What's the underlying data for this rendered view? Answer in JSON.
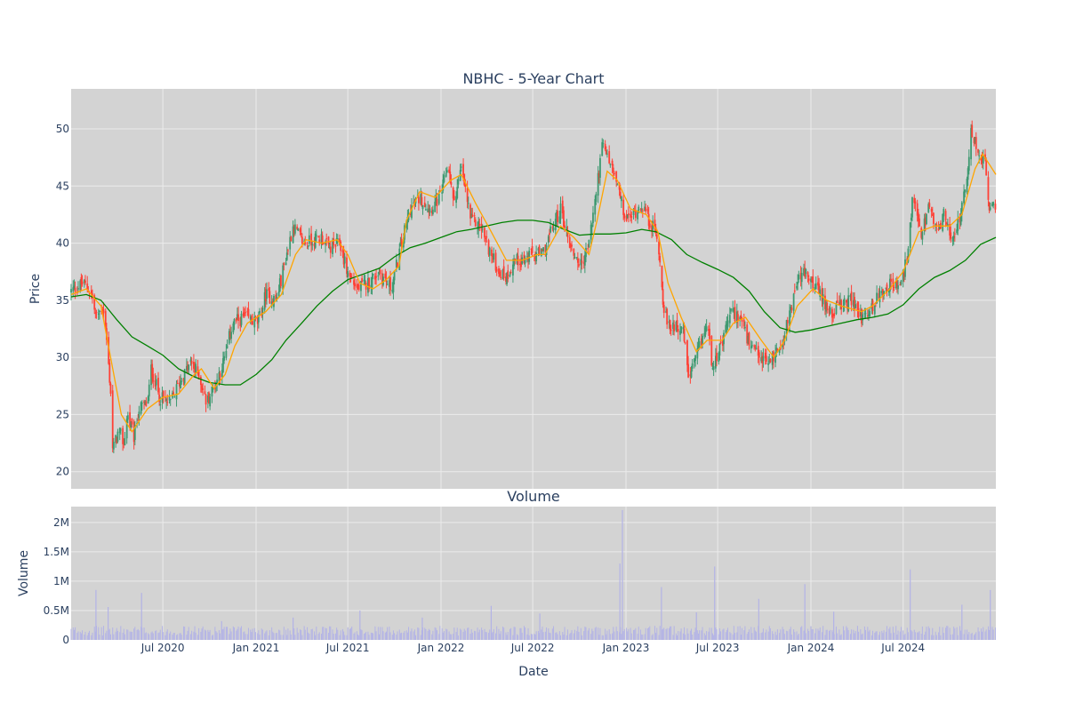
{
  "chart_data": {
    "type": "candlestick",
    "title": "NBHC - 5-Year Chart",
    "subplot_title": "Volume",
    "xlabel": "Date",
    "price_ylabel": "Price",
    "volume_ylabel": "Volume",
    "x_range": [
      "2020-01-02",
      "2024-12-31"
    ],
    "price_ylim": [
      18.5,
      53.5
    ],
    "volume_ylim": [
      0,
      2270000
    ],
    "x_ticks": [
      {
        "date": "2020-07-01",
        "label": "Jul 2020"
      },
      {
        "date": "2021-01-01",
        "label": "Jan 2021"
      },
      {
        "date": "2021-07-01",
        "label": "Jul 2021"
      },
      {
        "date": "2022-01-01",
        "label": "Jan 2022"
      },
      {
        "date": "2022-07-01",
        "label": "Jul 2022"
      },
      {
        "date": "2023-01-01",
        "label": "Jan 2023"
      },
      {
        "date": "2023-07-01",
        "label": "Jul 2023"
      },
      {
        "date": "2024-01-01",
        "label": "Jan 2024"
      },
      {
        "date": "2024-07-01",
        "label": "Jul 2024"
      }
    ],
    "price_ticks": [
      20,
      25,
      30,
      35,
      40,
      45,
      50
    ],
    "volume_ticks": [
      {
        "value": 0,
        "label": "0"
      },
      {
        "value": 500000,
        "label": "0.5M"
      },
      {
        "value": 1000000,
        "label": "1M"
      },
      {
        "value": 1500000,
        "label": "1.5M"
      },
      {
        "value": 2000000,
        "label": "2M"
      }
    ],
    "close_path": [
      [
        "2020-01-02",
        35.8
      ],
      [
        "2020-01-25",
        36.5
      ],
      [
        "2020-02-10",
        35.8
      ],
      [
        "2020-02-20",
        33.5
      ],
      [
        "2020-03-05",
        34.5
      ],
      [
        "2020-03-12",
        31.5
      ],
      [
        "2020-03-20",
        27.0
      ],
      [
        "2020-03-24",
        22.0
      ],
      [
        "2020-04-05",
        23.5
      ],
      [
        "2020-04-15",
        22.5
      ],
      [
        "2020-04-22",
        25.0
      ],
      [
        "2020-05-05",
        23.0
      ],
      [
        "2020-05-15",
        25.5
      ],
      [
        "2020-06-01",
        26.0
      ],
      [
        "2020-06-08",
        29.0
      ],
      [
        "2020-06-25",
        26.5
      ],
      [
        "2020-07-15",
        26.0
      ],
      [
        "2020-08-05",
        28.0
      ],
      [
        "2020-08-25",
        29.5
      ],
      [
        "2020-09-10",
        28.5
      ],
      [
        "2020-09-25",
        26.0
      ],
      [
        "2020-10-15",
        28.0
      ],
      [
        "2020-11-01",
        30.0
      ],
      [
        "2020-11-15",
        33.0
      ],
      [
        "2020-12-10",
        33.5
      ],
      [
        "2021-01-05",
        33.0
      ],
      [
        "2021-01-20",
        35.5
      ],
      [
        "2021-02-10",
        35.0
      ],
      [
        "2021-02-25",
        38.0
      ],
      [
        "2021-03-15",
        41.5
      ],
      [
        "2021-04-05",
        40.0
      ],
      [
        "2021-05-10",
        40.5
      ],
      [
        "2021-05-25",
        39.5
      ],
      [
        "2021-06-15",
        40.0
      ],
      [
        "2021-06-30",
        37.5
      ],
      [
        "2021-07-20",
        36.0
      ],
      [
        "2021-08-10",
        36.5
      ],
      [
        "2021-09-01",
        37.5
      ],
      [
        "2021-09-25",
        36.0
      ],
      [
        "2021-10-15",
        40.0
      ],
      [
        "2021-11-01",
        43.0
      ],
      [
        "2021-11-20",
        44.0
      ],
      [
        "2021-12-10",
        43.0
      ],
      [
        "2021-12-31",
        44.0
      ],
      [
        "2022-01-15",
        47.0
      ],
      [
        "2022-01-25",
        43.5
      ],
      [
        "2022-02-10",
        46.5
      ],
      [
        "2022-03-01",
        42.0
      ],
      [
        "2022-03-20",
        41.5
      ],
      [
        "2022-04-10",
        39.0
      ],
      [
        "2022-04-25",
        37.5
      ],
      [
        "2022-05-10",
        37.0
      ],
      [
        "2022-05-25",
        38.5
      ],
      [
        "2022-06-15",
        38.5
      ],
      [
        "2022-06-30",
        39.0
      ],
      [
        "2022-07-20",
        39.0
      ],
      [
        "2022-08-10",
        41.5
      ],
      [
        "2022-08-25",
        43.0
      ],
      [
        "2022-09-15",
        39.5
      ],
      [
        "2022-10-05",
        38.0
      ],
      [
        "2022-10-20",
        40.0
      ],
      [
        "2022-11-05",
        45.0
      ],
      [
        "2022-11-15",
        48.5
      ],
      [
        "2022-12-01",
        47.0
      ],
      [
        "2022-12-15",
        45.0
      ],
      [
        "2022-12-31",
        42.0
      ],
      [
        "2023-01-15",
        42.5
      ],
      [
        "2023-02-01",
        43.5
      ],
      [
        "2023-02-15",
        42.0
      ],
      [
        "2023-03-05",
        40.5
      ],
      [
        "2023-03-15",
        35.0
      ],
      [
        "2023-03-25",
        32.5
      ],
      [
        "2023-04-10",
        33.0
      ],
      [
        "2023-04-25",
        32.0
      ],
      [
        "2023-05-05",
        28.0
      ],
      [
        "2023-05-20",
        30.0
      ],
      [
        "2023-06-10",
        33.0
      ],
      [
        "2023-06-20",
        29.5
      ],
      [
        "2023-07-10",
        31.0
      ],
      [
        "2023-07-25",
        34.0
      ],
      [
        "2023-08-15",
        33.5
      ],
      [
        "2023-09-01",
        31.0
      ],
      [
        "2023-09-20",
        30.0
      ],
      [
        "2023-10-10",
        29.5
      ],
      [
        "2023-10-25",
        30.5
      ],
      [
        "2023-11-10",
        32.0
      ],
      [
        "2023-12-01",
        36.0
      ],
      [
        "2023-12-15",
        37.5
      ],
      [
        "2024-01-05",
        36.5
      ],
      [
        "2024-01-25",
        35.0
      ],
      [
        "2024-02-10",
        34.0
      ],
      [
        "2024-03-01",
        34.5
      ],
      [
        "2024-03-20",
        35.0
      ],
      [
        "2024-04-10",
        33.5
      ],
      [
        "2024-04-25",
        34.0
      ],
      [
        "2024-05-15",
        35.5
      ],
      [
        "2024-06-05",
        36.5
      ],
      [
        "2024-06-25",
        36.0
      ],
      [
        "2024-07-10",
        39.0
      ],
      [
        "2024-07-20",
        44.0
      ],
      [
        "2024-08-05",
        40.5
      ],
      [
        "2024-08-20",
        43.0
      ],
      [
        "2024-09-05",
        41.0
      ],
      [
        "2024-09-20",
        42.5
      ],
      [
        "2024-10-05",
        40.5
      ],
      [
        "2024-10-20",
        42.0
      ],
      [
        "2024-11-05",
        45.5
      ],
      [
        "2024-11-12",
        50.0
      ],
      [
        "2024-11-25",
        48.0
      ],
      [
        "2024-12-10",
        47.0
      ],
      [
        "2024-12-18",
        43.0
      ],
      [
        "2024-12-31",
        43.0
      ]
    ],
    "ma_short_path": [
      [
        "2020-01-02",
        35.5
      ],
      [
        "2020-02-01",
        36.0
      ],
      [
        "2020-03-01",
        34.5
      ],
      [
        "2020-03-20",
        30.0
      ],
      [
        "2020-04-10",
        25.0
      ],
      [
        "2020-05-01",
        23.5
      ],
      [
        "2020-06-01",
        25.5
      ],
      [
        "2020-07-01",
        26.5
      ],
      [
        "2020-08-01",
        26.8
      ],
      [
        "2020-09-01",
        28.5
      ],
      [
        "2020-09-15",
        29.0
      ],
      [
        "2020-10-10",
        27.3
      ],
      [
        "2020-11-01",
        28.5
      ],
      [
        "2020-11-20",
        31.0
      ],
      [
        "2020-12-15",
        33.0
      ],
      [
        "2021-01-20",
        34.0
      ],
      [
        "2021-02-20",
        35.5
      ],
      [
        "2021-03-20",
        39.0
      ],
      [
        "2021-04-10",
        40.3
      ],
      [
        "2021-05-10",
        40.0
      ],
      [
        "2021-06-10",
        40.3
      ],
      [
        "2021-07-01",
        39.0
      ],
      [
        "2021-07-25",
        36.5
      ],
      [
        "2021-08-20",
        36.0
      ],
      [
        "2021-09-15",
        36.8
      ],
      [
        "2021-10-10",
        38.0
      ],
      [
        "2021-10-25",
        42.0
      ],
      [
        "2021-11-20",
        44.5
      ],
      [
        "2021-12-20",
        44.0
      ],
      [
        "2022-01-20",
        45.5
      ],
      [
        "2022-02-10",
        46.0
      ],
      [
        "2022-03-10",
        43.5
      ],
      [
        "2022-04-10",
        41.0
      ],
      [
        "2022-05-10",
        38.5
      ],
      [
        "2022-06-10",
        38.5
      ],
      [
        "2022-07-10",
        39.0
      ],
      [
        "2022-07-25",
        39.0
      ],
      [
        "2022-08-25",
        41.5
      ],
      [
        "2022-09-20",
        40.5
      ],
      [
        "2022-10-20",
        39.0
      ],
      [
        "2022-11-05",
        42.0
      ],
      [
        "2022-11-25",
        46.3
      ],
      [
        "2022-12-15",
        45.5
      ],
      [
        "2023-01-10",
        43.0
      ],
      [
        "2023-02-10",
        42.5
      ],
      [
        "2023-03-05",
        41.0
      ],
      [
        "2023-03-25",
        36.5
      ],
      [
        "2023-04-20",
        33.5
      ],
      [
        "2023-05-20",
        30.5
      ],
      [
        "2023-06-10",
        31.5
      ],
      [
        "2023-07-10",
        31.5
      ],
      [
        "2023-08-01",
        33.0
      ],
      [
        "2023-08-25",
        33.5
      ],
      [
        "2023-09-25",
        31.5
      ],
      [
        "2023-10-20",
        30.0
      ],
      [
        "2023-11-10",
        31.5
      ],
      [
        "2023-12-05",
        34.5
      ],
      [
        "2024-01-05",
        36.0
      ],
      [
        "2024-02-01",
        35.0
      ],
      [
        "2024-03-01",
        34.5
      ],
      [
        "2024-04-10",
        34.0
      ],
      [
        "2024-05-01",
        34.5
      ],
      [
        "2024-06-05",
        36.0
      ],
      [
        "2024-07-01",
        37.5
      ],
      [
        "2024-08-01",
        41.0
      ],
      [
        "2024-09-01",
        41.5
      ],
      [
        "2024-10-01",
        41.5
      ],
      [
        "2024-10-25",
        42.5
      ],
      [
        "2024-11-20",
        46.5
      ],
      [
        "2024-12-05",
        47.8
      ],
      [
        "2024-12-31",
        46.0
      ]
    ],
    "ma_long_path": [
      [
        "2020-01-02",
        35.3
      ],
      [
        "2020-02-01",
        35.5
      ],
      [
        "2020-03-01",
        35.0
      ],
      [
        "2020-04-01",
        33.3
      ],
      [
        "2020-05-01",
        31.8
      ],
      [
        "2020-06-01",
        31.0
      ],
      [
        "2020-07-01",
        30.2
      ],
      [
        "2020-08-01",
        29.0
      ],
      [
        "2020-09-01",
        28.3
      ],
      [
        "2020-10-01",
        27.8
      ],
      [
        "2020-11-01",
        27.6
      ],
      [
        "2020-12-01",
        27.6
      ],
      [
        "2021-01-01",
        28.5
      ],
      [
        "2021-02-01",
        29.8
      ],
      [
        "2021-03-01",
        31.5
      ],
      [
        "2021-04-01",
        33.0
      ],
      [
        "2021-05-01",
        34.5
      ],
      [
        "2021-06-01",
        35.8
      ],
      [
        "2021-07-01",
        36.8
      ],
      [
        "2021-08-01",
        37.3
      ],
      [
        "2021-09-01",
        37.8
      ],
      [
        "2021-10-01",
        38.8
      ],
      [
        "2021-11-01",
        39.6
      ],
      [
        "2021-12-01",
        40.0
      ],
      [
        "2022-01-01",
        40.5
      ],
      [
        "2022-02-01",
        41.0
      ],
      [
        "2022-03-01",
        41.2
      ],
      [
        "2022-04-01",
        41.5
      ],
      [
        "2022-05-01",
        41.8
      ],
      [
        "2022-06-01",
        42.0
      ],
      [
        "2022-07-01",
        42.0
      ],
      [
        "2022-08-01",
        41.8
      ],
      [
        "2022-09-01",
        41.2
      ],
      [
        "2022-10-01",
        40.7
      ],
      [
        "2022-11-01",
        40.8
      ],
      [
        "2022-12-01",
        40.8
      ],
      [
        "2023-01-01",
        40.9
      ],
      [
        "2023-02-01",
        41.2
      ],
      [
        "2023-03-01",
        41.0
      ],
      [
        "2023-04-01",
        40.3
      ],
      [
        "2023-05-01",
        39.0
      ],
      [
        "2023-06-01",
        38.3
      ],
      [
        "2023-07-01",
        37.7
      ],
      [
        "2023-08-01",
        37.0
      ],
      [
        "2023-09-01",
        35.8
      ],
      [
        "2023-10-01",
        34.0
      ],
      [
        "2023-11-01",
        32.6
      ],
      [
        "2023-12-01",
        32.2
      ],
      [
        "2024-01-01",
        32.4
      ],
      [
        "2024-02-01",
        32.7
      ],
      [
        "2024-03-01",
        33.0
      ],
      [
        "2024-04-01",
        33.3
      ],
      [
        "2024-05-01",
        33.5
      ],
      [
        "2024-06-01",
        33.8
      ],
      [
        "2024-07-01",
        34.6
      ],
      [
        "2024-08-01",
        36.0
      ],
      [
        "2024-09-01",
        37.0
      ],
      [
        "2024-10-01",
        37.6
      ],
      [
        "2024-11-01",
        38.5
      ],
      [
        "2024-12-01",
        39.9
      ],
      [
        "2024-12-31",
        40.5
      ]
    ],
    "volume_typical": 150000,
    "volume_spikes": [
      [
        "2020-02-20",
        850000
      ],
      [
        "2020-03-15",
        560000
      ],
      [
        "2020-05-20",
        800000
      ],
      [
        "2020-10-25",
        320000
      ],
      [
        "2021-03-15",
        380000
      ],
      [
        "2021-07-25",
        500000
      ],
      [
        "2021-11-25",
        380000
      ],
      [
        "2022-04-10",
        580000
      ],
      [
        "2022-07-15",
        450000
      ],
      [
        "2022-12-20",
        1300000
      ],
      [
        "2022-12-25",
        2210000
      ],
      [
        "2023-03-12",
        900000
      ],
      [
        "2023-05-20",
        470000
      ],
      [
        "2023-06-25",
        1250000
      ],
      [
        "2023-09-20",
        700000
      ],
      [
        "2023-12-20",
        950000
      ],
      [
        "2024-02-15",
        480000
      ],
      [
        "2024-07-15",
        1200000
      ],
      [
        "2024-10-25",
        600000
      ],
      [
        "2024-12-20",
        850000
      ]
    ],
    "colors": {
      "up_candle": "#3d9970",
      "down_candle": "#ff4136",
      "ma_short": "#ffa500",
      "ma_long": "#008000",
      "volume_bar": "#b3b3e6",
      "plot_bg": "#d3d3d3"
    }
  }
}
